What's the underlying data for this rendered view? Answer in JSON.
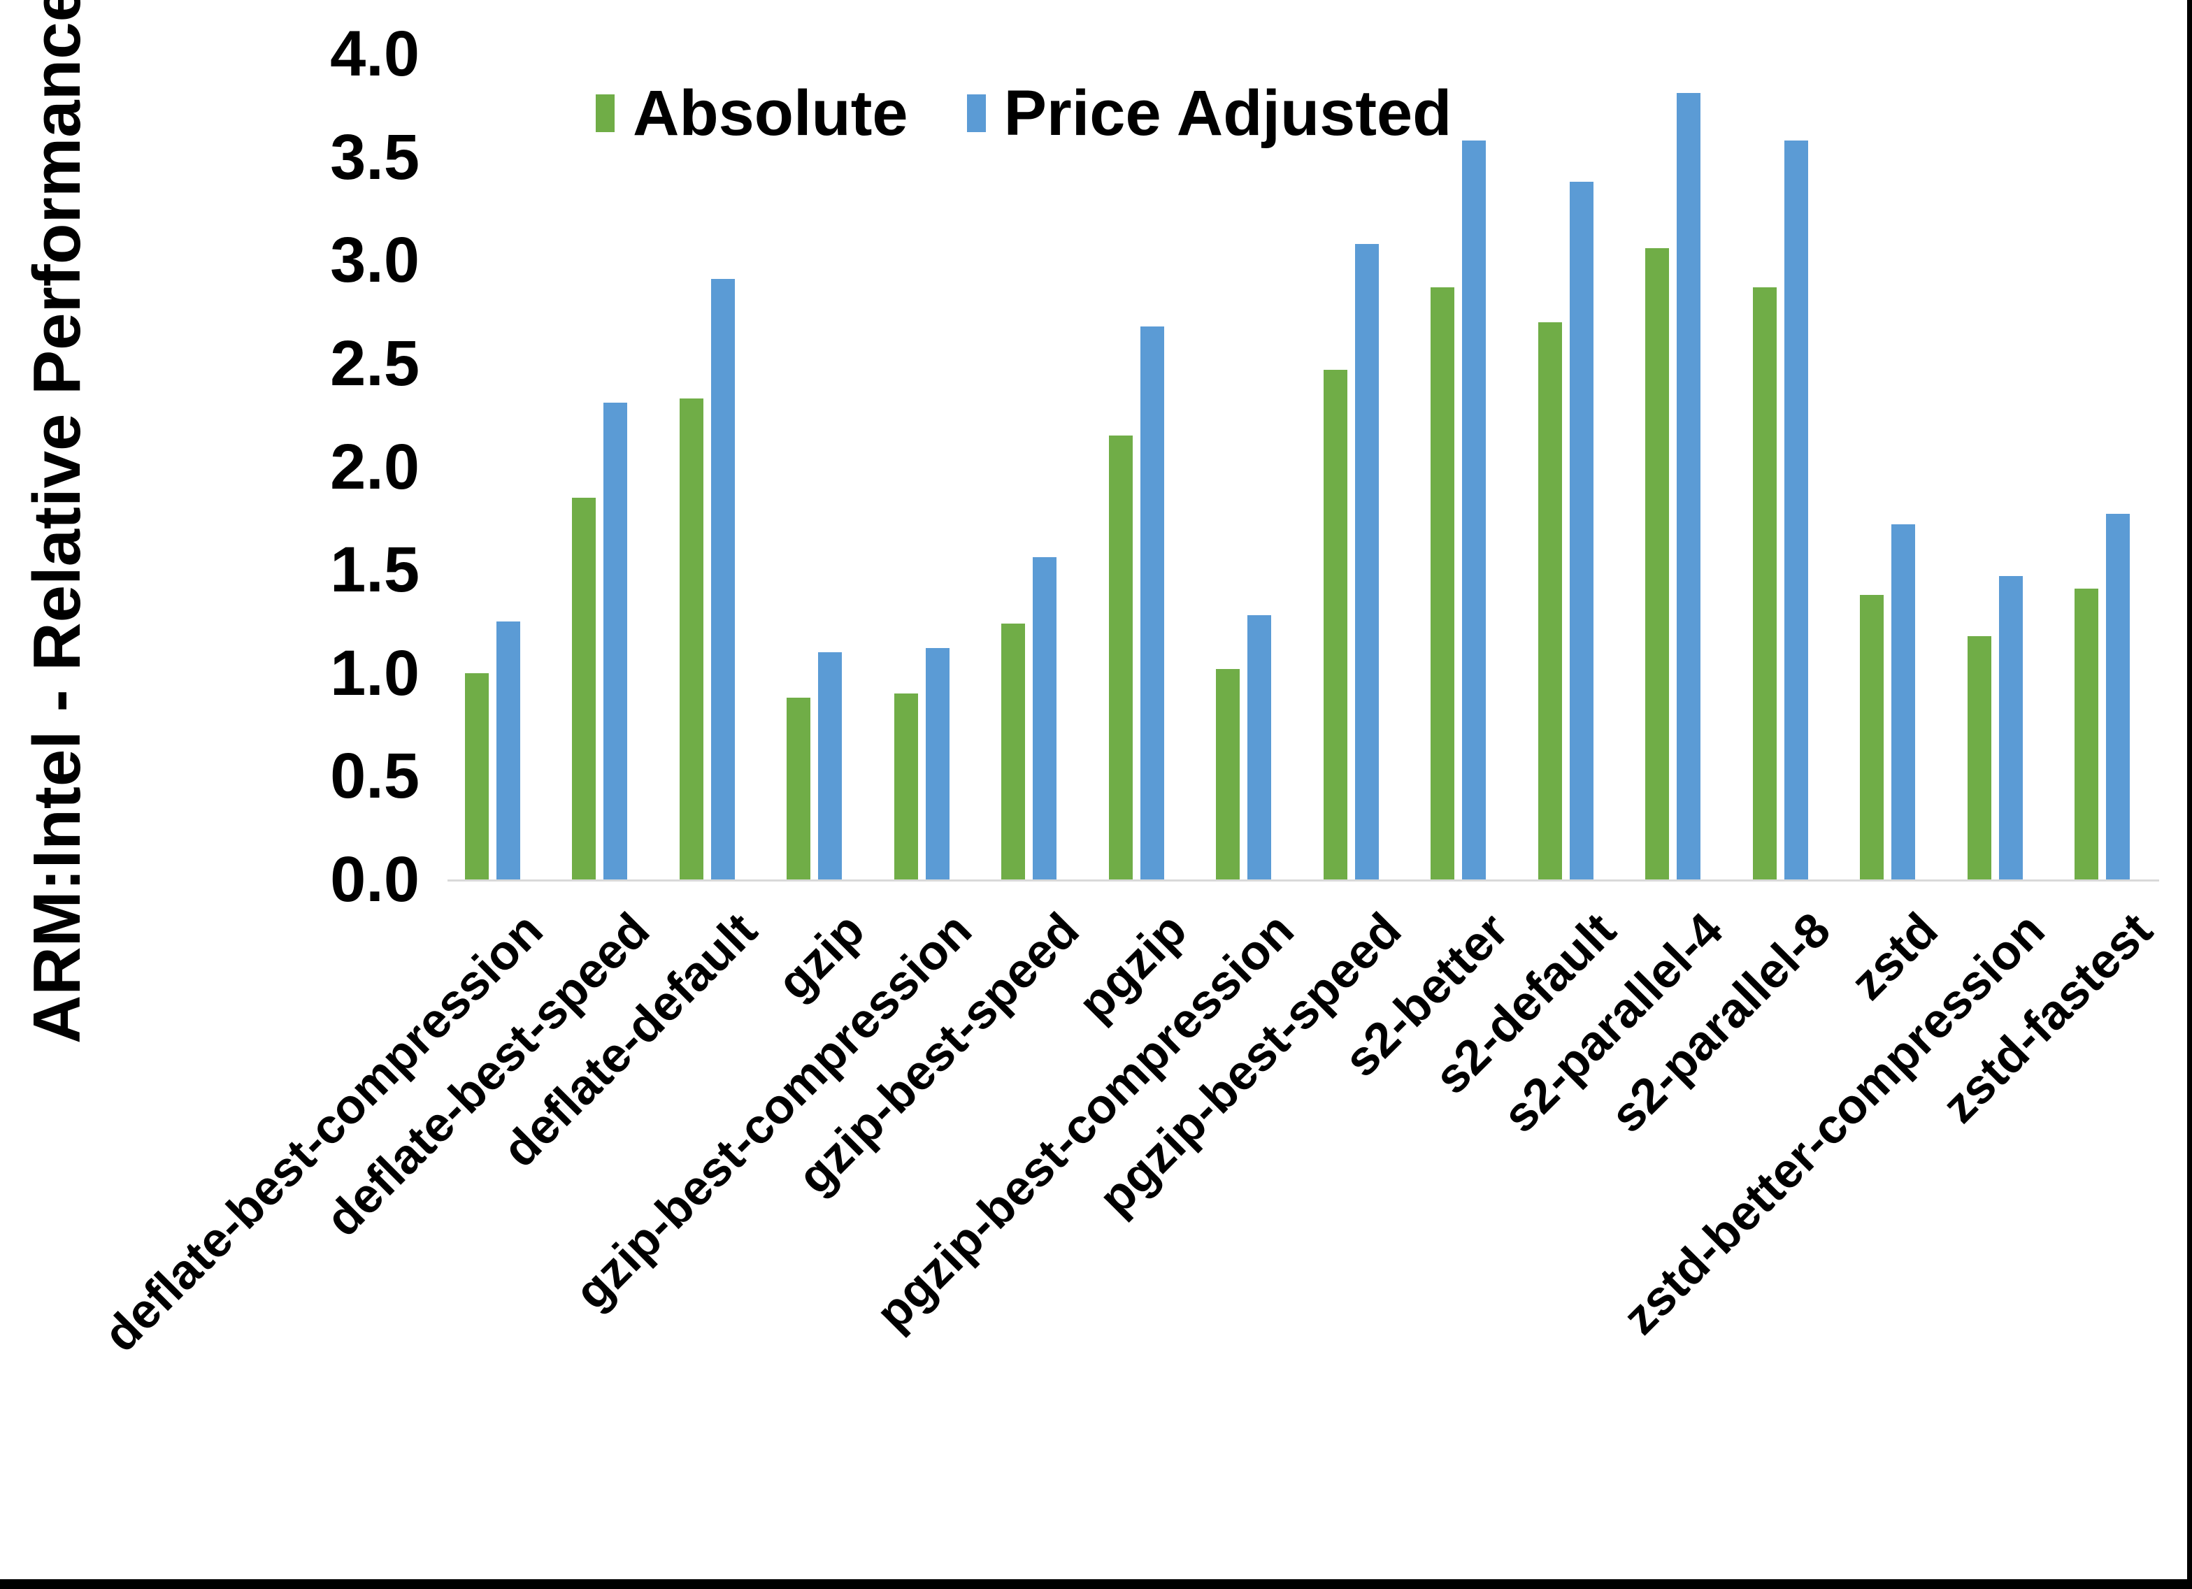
{
  "chart_data": {
    "type": "bar",
    "title": "",
    "ylabel": "ARM:Intel - Relative Performance",
    "xlabel": "",
    "ylim": [
      0,
      4
    ],
    "yticks": [
      "0.0",
      "0.5",
      "1.0",
      "1.5",
      "2.0",
      "2.5",
      "3.0",
      "3.5",
      "4.0"
    ],
    "grid": false,
    "legend_position": "top-center",
    "categories": [
      "deflate-best-compression",
      "deflate-best-speed",
      "deflate-default",
      "gzip",
      "gzip-best-compression",
      "gzip-best-speed",
      "pgzip",
      "pgzip-best-compression",
      "pgzip-best-speed",
      "s2-better",
      "s2-default",
      "s2-parallel-4",
      "s2-parallel-8",
      "zstd",
      "zstd-better-compression",
      "zstd-fastest"
    ],
    "series": [
      {
        "name": "Absolute",
        "color": "#70AD47",
        "values": [
          1.0,
          1.85,
          2.33,
          0.88,
          0.9,
          1.24,
          2.15,
          1.02,
          2.47,
          2.87,
          2.7,
          3.06,
          2.87,
          1.38,
          1.18,
          1.41
        ]
      },
      {
        "name": "Price Adjusted",
        "color": "#5B9BD5",
        "values": [
          1.25,
          2.31,
          2.91,
          1.1,
          1.12,
          1.56,
          2.68,
          1.28,
          3.08,
          3.58,
          3.38,
          3.81,
          3.58,
          1.72,
          1.47,
          1.77
        ]
      }
    ],
    "axis_line_color": "#D9D9D9",
    "text_color": "#000000",
    "border_color": "#000000",
    "background_color": "#FFFFFF"
  }
}
